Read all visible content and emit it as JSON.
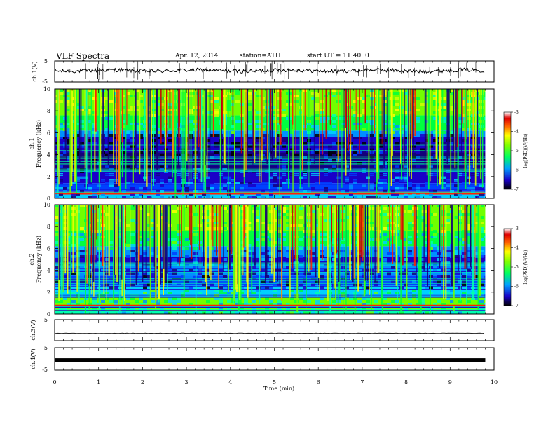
{
  "header": {
    "title": "VLF  Spectra",
    "date": "Apr. 12, 2014",
    "station": "station=ATH",
    "start": "start  UT  =   11:40: 0"
  },
  "chart_data": [
    {
      "type": "line",
      "name": "ch1-waveform",
      "ylabel": "ch.1(V)",
      "y_ticks": [
        "5",
        "-5"
      ],
      "ylim": [
        -5,
        5
      ],
      "xlim": [
        0,
        10
      ],
      "trace_level": 0.4,
      "data_end_min": 9.8
    },
    {
      "type": "heatmap",
      "name": "ch1-spectrogram",
      "ylabel_channel": "ch.1",
      "ylabel": "Frequency  (kHz)",
      "y_ticks": [
        "0",
        "2",
        "4",
        "6",
        "8",
        "10"
      ],
      "ylim": [
        0,
        10
      ],
      "xlim": [
        0,
        10
      ],
      "data_end_min": 9.8,
      "colorbar": {
        "label": "log(PSD)(V²/Hz)",
        "ticks": [
          "-3",
          "-4",
          "-5",
          "-6",
          "-7"
        ],
        "range": [
          -7,
          -3
        ]
      }
    },
    {
      "type": "heatmap",
      "name": "ch2-spectrogram",
      "ylabel_channel": "ch.2",
      "ylabel": "Frequency  (kHz)",
      "y_ticks": [
        "0",
        "2",
        "4",
        "6",
        "8",
        "10"
      ],
      "ylim": [
        0,
        10
      ],
      "xlim": [
        0,
        10
      ],
      "data_end_min": 9.8,
      "colorbar": {
        "label": "log(PSD)(V²/Hz)",
        "ticks": [
          "-3",
          "-4",
          "-5",
          "-6",
          "-7"
        ],
        "range": [
          -7,
          -3
        ]
      }
    },
    {
      "type": "line",
      "name": "ch3-waveform",
      "ylabel": "ch.3(V)",
      "y_ticks": [
        "5"
      ],
      "ylim": [
        -5,
        5
      ],
      "xlim": [
        0,
        10
      ],
      "trace_level": -1.5,
      "data_end_min": 9.8
    },
    {
      "type": "line",
      "name": "ch4-waveform",
      "ylabel": "ch.4(V)",
      "y_ticks": [
        "5",
        "-5"
      ],
      "ylim": [
        -5,
        5
      ],
      "xlim": [
        0,
        10
      ],
      "trace_level": -0.5,
      "data_end_min": 9.8
    }
  ],
  "x_axis": {
    "label": "Time  (min)",
    "ticks": [
      "0",
      "1",
      "2",
      "3",
      "4",
      "5",
      "6",
      "7",
      "8",
      "9",
      "10"
    ],
    "range": [
      0,
      10
    ]
  }
}
